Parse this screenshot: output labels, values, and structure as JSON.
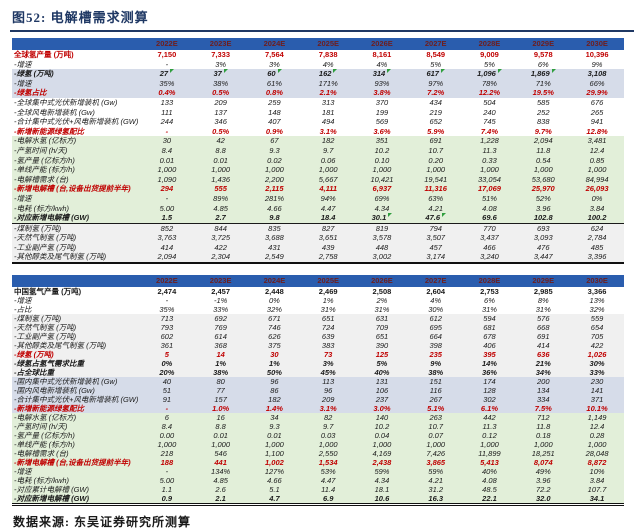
{
  "title": "图52: 电解槽需求测算",
  "source": "数据来源: 东吴证券研究所测算",
  "columns": [
    "2022E",
    "2023E",
    "2024E",
    "2025E",
    "2026E",
    "2027E",
    "2028E",
    "2029E",
    "2030E"
  ],
  "colors": {
    "header_bg": "#2A5DAE",
    "header_text": "#6E1E1E",
    "accent_red": "#C00000",
    "title_navy": "#1F3864",
    "row_lavender": "#D6DCE9",
    "row_green": "#E2EFD9",
    "row_gray": "#F0F0F0",
    "flag_green": "#2F9E3E"
  },
  "sections": [
    {
      "name": "global-hydrogen",
      "rows": [
        {
          "label": "全球氢产量 (万吨)",
          "head": true,
          "red": true,
          "bg": "white",
          "values": [
            "7,150",
            "7,333",
            "7,564",
            "7,838",
            "8,161",
            "8,549",
            "9,009",
            "9,578",
            "10,396"
          ]
        },
        {
          "label": "-增速",
          "bg": "white",
          "values": [
            "-",
            "3%",
            "3%",
            "4%",
            "4%",
            "5%",
            "5%",
            "6%",
            "9%"
          ]
        },
        {
          "label": "-绿氢 (万吨)",
          "bold": true,
          "bg": "lav",
          "flags": [
            0,
            1,
            2,
            3,
            4,
            5,
            6,
            7
          ],
          "values": [
            "27",
            "37",
            "60",
            "162",
            "314",
            "617",
            "1,096",
            "1,869",
            "3,108"
          ]
        },
        {
          "label": "-增速",
          "bg": "lav",
          "values": [
            "35%",
            "38%",
            "61%",
            "171%",
            "93%",
            "97%",
            "78%",
            "71%",
            "66%"
          ]
        },
        {
          "label": "-绿氢占比",
          "bold": true,
          "red": true,
          "bg": "lav",
          "values": [
            "0.4%",
            "0.5%",
            "0.8%",
            "2.1%",
            "3.8%",
            "7.2%",
            "12.2%",
            "19.5%",
            "29.9%"
          ]
        },
        {
          "label": "-全球集中式光伏新增装机 (Gw)",
          "bg": "white",
          "values": [
            "133",
            "209",
            "259",
            "313",
            "370",
            "434",
            "504",
            "585",
            "676"
          ]
        },
        {
          "label": "-全球风电新增装机 (Gw)",
          "bg": "white",
          "values": [
            "111",
            "137",
            "148",
            "181",
            "199",
            "219",
            "240",
            "252",
            "265"
          ]
        },
        {
          "label": "-合计集中式光伏+风电新增装机 (GW)",
          "bg": "white",
          "values": [
            "244",
            "346",
            "407",
            "494",
            "569",
            "652",
            "745",
            "838",
            "941"
          ]
        },
        {
          "label": "-新增新能源绿氢配比",
          "bold": true,
          "red": true,
          "bg": "white",
          "values": [
            "-",
            "0.5%",
            "0.9%",
            "3.1%",
            "3.6%",
            "5.9%",
            "7.4%",
            "9.7%",
            "12.8%"
          ]
        },
        {
          "label": "-电解水氢 (亿标方)",
          "bg": "green",
          "values": [
            "30",
            "42",
            "67",
            "182",
            "351",
            "691",
            "1,228",
            "2,094",
            "3,481"
          ]
        },
        {
          "label": "-产氢时间 (h/天)",
          "bg": "green",
          "values": [
            "8.4",
            "8.8",
            "9.3",
            "9.7",
            "10.2",
            "10.7",
            "11.3",
            "11.8",
            "12.4"
          ]
        },
        {
          "label": "-氢产量 (亿标方/h)",
          "bg": "green",
          "values": [
            "0.01",
            "0.01",
            "0.02",
            "0.06",
            "0.10",
            "0.20",
            "0.33",
            "0.54",
            "0.85"
          ]
        },
        {
          "label": "-单线产能 (标方/h)",
          "bg": "green",
          "values": [
            "1,000",
            "1,000",
            "1,000",
            "1,000",
            "1,000",
            "1,000",
            "1,000",
            "1,000",
            "1,000"
          ]
        },
        {
          "label": "-电解槽需求 (台)",
          "bg": "green",
          "values": [
            "1,090",
            "1,436",
            "2,200",
            "5,667",
            "10,421",
            "19,541",
            "33,054",
            "53,680",
            "84,994"
          ]
        },
        {
          "label": "-新增电解槽 (台,设备出货提前半年)",
          "bold": true,
          "red": true,
          "bg": "green",
          "values": [
            "294",
            "555",
            "2,115",
            "4,111",
            "6,937",
            "11,316",
            "17,069",
            "25,970",
            "26,093"
          ]
        },
        {
          "label": "-增速",
          "bg": "green",
          "values": [
            "-",
            "89%",
            "281%",
            "94%",
            "69%",
            "63%",
            "51%",
            "52%",
            "0%"
          ]
        },
        {
          "label": "-电耗 (标方/kwh)",
          "bg": "green",
          "values": [
            "5.00",
            "4.85",
            "4.66",
            "4.47",
            "4.34",
            "4.21",
            "4.08",
            "3.96",
            "3.84"
          ]
        },
        {
          "label": "-对应新增电解槽 (GW)",
          "bold": true,
          "bg": "green",
          "border": true,
          "flags": [
            4,
            5
          ],
          "values": [
            "1.5",
            "2.7",
            "9.8",
            "18.4",
            "30.1",
            "47.6",
            "69.6",
            "102.8",
            "100.2"
          ]
        },
        {
          "label": "-煤制氢 (万吨)",
          "bg": "gray",
          "values": [
            "852",
            "844",
            "835",
            "827",
            "819",
            "794",
            "770",
            "693",
            "624"
          ]
        },
        {
          "label": "-天然气制氢 (万吨)",
          "bg": "gray",
          "values": [
            "3,763",
            "3,725",
            "3,688",
            "3,651",
            "3,578",
            "3,507",
            "3,437",
            "3,093",
            "2,784"
          ]
        },
        {
          "label": "-工业副产氢 (万吨)",
          "bg": "gray",
          "values": [
            "414",
            "422",
            "431",
            "439",
            "448",
            "457",
            "466",
            "476",
            "485"
          ]
        },
        {
          "label": "-其他醇类及尾气制氢 (万吨)",
          "bg": "gray",
          "values": [
            "2,094",
            "2,304",
            "2,549",
            "2,758",
            "3,002",
            "3,174",
            "3,240",
            "3,447",
            "3,396"
          ]
        }
      ]
    },
    {
      "name": "china-hydrogen",
      "rows": [
        {
          "label": "中国氢气产量 (万吨)",
          "head": true,
          "bg": "white",
          "values": [
            "2,474",
            "2,457",
            "2,448",
            "2,469",
            "2,508",
            "2,604",
            "2,753",
            "2,985",
            "3,366"
          ]
        },
        {
          "label": "-增速",
          "bg": "white",
          "values": [
            "-",
            "-1%",
            "0%",
            "1%",
            "2%",
            "4%",
            "6%",
            "8%",
            "13%"
          ]
        },
        {
          "label": "-占比",
          "bg": "white",
          "values": [
            "35%",
            "33%",
            "32%",
            "31%",
            "31%",
            "30%",
            "31%",
            "31%",
            "32%"
          ]
        },
        {
          "label": "-煤制氢 (万吨)",
          "bg": "gray",
          "values": [
            "713",
            "692",
            "671",
            "651",
            "631",
            "612",
            "594",
            "576",
            "559"
          ]
        },
        {
          "label": "-天然气制氢 (万吨)",
          "bg": "gray",
          "values": [
            "793",
            "769",
            "746",
            "724",
            "709",
            "695",
            "681",
            "668",
            "654"
          ]
        },
        {
          "label": "-工业副产氢 (万吨)",
          "bg": "gray",
          "values": [
            "602",
            "614",
            "626",
            "639",
            "651",
            "664",
            "678",
            "691",
            "705"
          ]
        },
        {
          "label": "-其他醇类及尾气制氢 (万吨)",
          "bg": "gray",
          "values": [
            "361",
            "368",
            "375",
            "383",
            "390",
            "398",
            "406",
            "414",
            "422"
          ]
        },
        {
          "label": "-绿氢 (万吨)",
          "bold": true,
          "red": true,
          "bg": "gray",
          "values": [
            "5",
            "14",
            "30",
            "73",
            "125",
            "235",
            "395",
            "636",
            "1,026"
          ]
        },
        {
          "label": "-绿氢占氢气需求比重",
          "bold": true,
          "bg": "gray",
          "values": [
            "0%",
            "1%",
            "1%",
            "3%",
            "5%",
            "9%",
            "14%",
            "21%",
            "30%"
          ]
        },
        {
          "label": "-占全球比重",
          "bold": true,
          "bg": "gray",
          "values": [
            "20%",
            "38%",
            "50%",
            "45%",
            "40%",
            "38%",
            "36%",
            "34%",
            "33%"
          ]
        },
        {
          "label": "-国内集中式光伏新增装机 (Gw)",
          "bg": "lav",
          "values": [
            "40",
            "80",
            "96",
            "113",
            "131",
            "151",
            "174",
            "200",
            "230"
          ]
        },
        {
          "label": "-国内风电新增装机 (Gw)",
          "bg": "lav",
          "values": [
            "51",
            "77",
            "86",
            "96",
            "106",
            "116",
            "128",
            "134",
            "141"
          ]
        },
        {
          "label": "-合计集中式光伏+风电新增装机 (GW)",
          "bg": "lav",
          "values": [
            "91",
            "157",
            "182",
            "209",
            "237",
            "267",
            "302",
            "334",
            "371"
          ]
        },
        {
          "label": "-新增新能源绿氢配比",
          "bold": true,
          "red": true,
          "bg": "lav",
          "values": [
            "-",
            "1.0%",
            "1.4%",
            "3.1%",
            "3.0%",
            "5.1%",
            "6.1%",
            "7.5%",
            "10.1%"
          ]
        },
        {
          "label": "-电解水氢 (亿标方)",
          "bg": "green",
          "values": [
            "6",
            "16",
            "34",
            "82",
            "140",
            "263",
            "442",
            "712",
            "1,149"
          ]
        },
        {
          "label": "-产氢时间 (h/天)",
          "bg": "green",
          "values": [
            "8.4",
            "8.8",
            "9.3",
            "9.7",
            "10.2",
            "10.7",
            "11.3",
            "11.8",
            "12.4"
          ]
        },
        {
          "label": "-氢产量 (亿标方/h)",
          "bg": "green",
          "values": [
            "0.00",
            "0.01",
            "0.01",
            "0.03",
            "0.04",
            "0.07",
            "0.12",
            "0.18",
            "0.28"
          ]
        },
        {
          "label": "-单线产能 (标方/h)",
          "bg": "green",
          "values": [
            "1,000",
            "1,000",
            "1,000",
            "1,000",
            "1,000",
            "1,000",
            "1,000",
            "1,000",
            "1,000"
          ]
        },
        {
          "label": "-电解槽需求 (台)",
          "bg": "green",
          "values": [
            "218",
            "546",
            "1,100",
            "2,550",
            "4,169",
            "7,426",
            "11,899",
            "18,251",
            "28,048"
          ]
        },
        {
          "label": "-新增电解槽 (台,设备出货提前半年)",
          "bold": true,
          "red": true,
          "bg": "green",
          "values": [
            "188",
            "441",
            "1,002",
            "1,534",
            "2,438",
            "3,865",
            "5,413",
            "8,074",
            "8,872"
          ]
        },
        {
          "label": "-增速",
          "bg": "green",
          "values": [
            "-",
            "134%",
            "127%",
            "53%",
            "59%",
            "59%",
            "40%",
            "49%",
            "10%"
          ]
        },
        {
          "label": "-电耗 (标方/kwh)",
          "bg": "green",
          "values": [
            "5.00",
            "4.85",
            "4.66",
            "4.47",
            "4.34",
            "4.21",
            "4.08",
            "3.96",
            "3.84"
          ]
        },
        {
          "label": "-对应累计电解槽 (GW)",
          "bg": "green",
          "values": [
            "1.1",
            "2.6",
            "5.1",
            "11.4",
            "18.1",
            "31.2",
            "48.5",
            "72.2",
            "107.7"
          ]
        },
        {
          "label": "-对应新增电解槽 (GW)",
          "bold": true,
          "bg": "green",
          "values": [
            "0.9",
            "2.1",
            "4.7",
            "6.9",
            "10.6",
            "16.3",
            "22.1",
            "32.0",
            "34.1"
          ]
        }
      ]
    }
  ]
}
